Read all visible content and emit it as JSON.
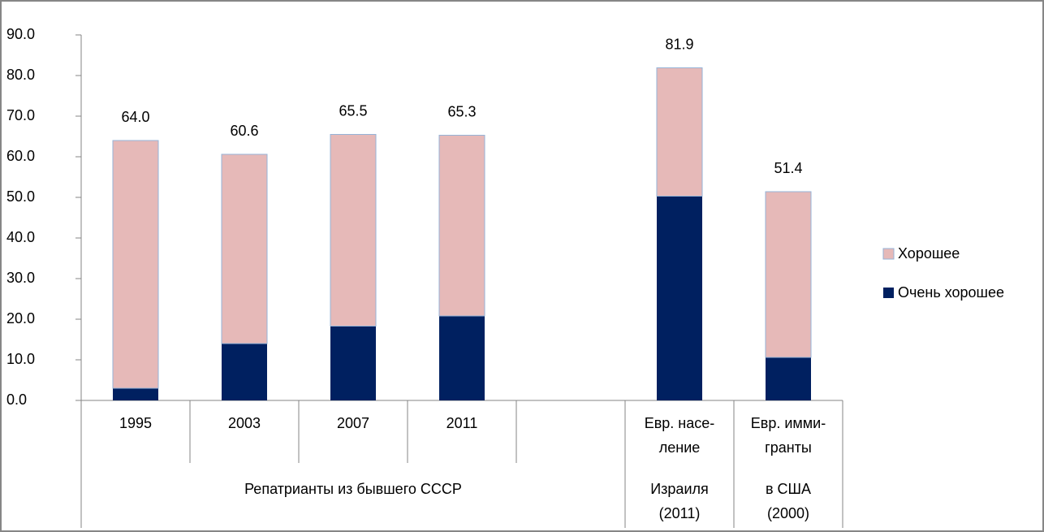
{
  "chart_data": {
    "type": "stacked_bar",
    "categories": [
      [
        "1995"
      ],
      [
        "2003"
      ],
      [
        "2007"
      ],
      [
        "2011"
      ],
      null,
      [
        "Евр. насе-",
        "ление"
      ],
      [
        "Евр. имми-",
        "гранты"
      ]
    ],
    "groups": [
      {
        "lines": [
          "Репатрианты из бывшего СССР"
        ],
        "from": 0,
        "to": 4
      },
      {
        "lines": [
          "Израиля",
          "(2011)"
        ],
        "from": 5,
        "to": 5
      },
      {
        "lines": [
          "в США",
          "(2000)"
        ],
        "from": 6,
        "to": 6
      }
    ],
    "series": [
      {
        "name": "Очень хорошее",
        "color": "#002060",
        "values": [
          3.0,
          14.0,
          18.3,
          20.8,
          null,
          50.3,
          10.6
        ]
      },
      {
        "name": "Хорошее",
        "color": "#e6b9b8",
        "values": [
          61.0,
          46.6,
          47.2,
          44.5,
          null,
          31.6,
          40.8
        ]
      }
    ],
    "totals": [
      64.0,
      60.6,
      65.5,
      65.3,
      null,
      81.9,
      51.4
    ],
    "total_labels": [
      "64.0",
      "60.6",
      "65.5",
      "65.3",
      null,
      "81.9",
      "51.4"
    ],
    "ylim": [
      0,
      90
    ],
    "yticks": [
      {
        "value": 0,
        "label": "0.0"
      },
      {
        "value": 10,
        "label": "10.0"
      },
      {
        "value": 20,
        "label": "20.0"
      },
      {
        "value": 30,
        "label": "30.0"
      },
      {
        "value": 40,
        "label": "40.0"
      },
      {
        "value": 50,
        "label": "50.0"
      },
      {
        "value": 60,
        "label": "60.0"
      },
      {
        "value": 70,
        "label": "70.0"
      },
      {
        "value": 80,
        "label": "80.0"
      },
      {
        "value": 90,
        "label": "90.0"
      }
    ],
    "grid": false,
    "legend": "right"
  }
}
